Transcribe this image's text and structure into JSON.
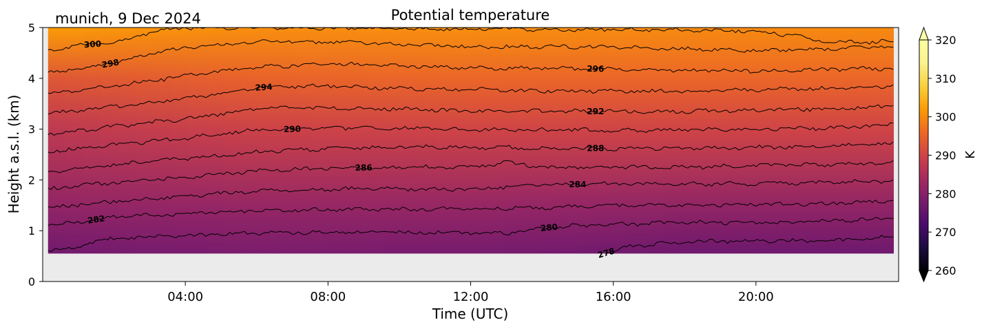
{
  "chart_data": {
    "type": "heatmap",
    "title": "Potential temperature",
    "location_label": "munich, 9 Dec 2024",
    "xlabel": "Time (UTC)",
    "ylabel": "Height a.s.l. (km)",
    "x_range_hours": [
      0,
      24
    ],
    "ylim": [
      0,
      5
    ],
    "x_ticks": [
      {
        "hour": 4,
        "label": "04:00"
      },
      {
        "hour": 8,
        "label": "08:00"
      },
      {
        "hour": 12,
        "label": "12:00"
      },
      {
        "hour": 16,
        "label": "16:00"
      },
      {
        "hour": 20,
        "label": "20:00"
      }
    ],
    "y_ticks": [
      {
        "value": 0,
        "label": "0"
      },
      {
        "value": 1,
        "label": "1"
      },
      {
        "value": 2,
        "label": "2"
      },
      {
        "value": 3,
        "label": "3"
      },
      {
        "value": 4,
        "label": "4"
      },
      {
        "value": 5,
        "label": "5"
      }
    ],
    "data_extent": {
      "time_hours": [
        0.15,
        23.85
      ],
      "height_km": [
        0.55,
        5.0
      ]
    },
    "colorbar": {
      "label": "K",
      "range": [
        260,
        320
      ],
      "colormap": "inferno",
      "extend": "both",
      "ticks": [
        {
          "value": 260,
          "label": "260"
        },
        {
          "value": 270,
          "label": "270"
        },
        {
          "value": 280,
          "label": "280"
        },
        {
          "value": 290,
          "label": "290"
        },
        {
          "value": 300,
          "label": "300"
        },
        {
          "value": 310,
          "label": "310"
        },
        {
          "value": 320,
          "label": "320"
        }
      ]
    },
    "field_samples": [
      {
        "time_hours": 0.2,
        "profile": [
          {
            "height_km": 0.6,
            "theta_k": 277.4
          },
          {
            "height_km": 1.5,
            "theta_k": 281.5
          },
          {
            "height_km": 3.0,
            "theta_k": 287.5
          },
          {
            "height_km": 4.0,
            "theta_k": 293.0
          },
          {
            "height_km": 5.0,
            "theta_k": 302.0
          }
        ]
      },
      {
        "time_hours": 6.0,
        "profile": [
          {
            "height_km": 0.6,
            "theta_k": 278.5
          },
          {
            "height_km": 1.5,
            "theta_k": 282.0
          },
          {
            "height_km": 3.0,
            "theta_k": 289.5
          },
          {
            "height_km": 4.0,
            "theta_k": 295.0
          },
          {
            "height_km": 5.0,
            "theta_k": 300.5
          }
        ]
      },
      {
        "time_hours": 12.0,
        "profile": [
          {
            "height_km": 0.6,
            "theta_k": 278.0
          },
          {
            "height_km": 1.5,
            "theta_k": 282.0
          },
          {
            "height_km": 3.0,
            "theta_k": 290.0
          },
          {
            "height_km": 4.0,
            "theta_k": 295.5
          },
          {
            "height_km": 5.0,
            "theta_k": 300.5
          }
        ]
      },
      {
        "time_hours": 18.0,
        "profile": [
          {
            "height_km": 0.6,
            "theta_k": 277.0
          },
          {
            "height_km": 1.5,
            "theta_k": 281.5
          },
          {
            "height_km": 3.0,
            "theta_k": 290.0
          },
          {
            "height_km": 4.0,
            "theta_k": 295.5
          },
          {
            "height_km": 5.0,
            "theta_k": 300.0
          }
        ]
      },
      {
        "time_hours": 23.8,
        "profile": [
          {
            "height_km": 0.6,
            "theta_k": 277.0
          },
          {
            "height_km": 1.5,
            "theta_k": 281.5
          },
          {
            "height_km": 3.0,
            "theta_k": 290.0
          },
          {
            "height_km": 4.0,
            "theta_k": 295.5
          },
          {
            "height_km": 5.0,
            "theta_k": 300.0
          }
        ]
      }
    ],
    "contours": [
      {
        "level": 278,
        "label": "278",
        "label_time_hours": 15.8,
        "points": [
          [
            15.8,
            0.56
          ],
          [
            16.5,
            0.7
          ],
          [
            18,
            0.78
          ],
          [
            20,
            0.8
          ],
          [
            22,
            0.8
          ],
          [
            23.85,
            0.88
          ]
        ]
      },
      {
        "level": 280,
        "label": "280",
        "label_time_hours": 14.2,
        "points": [
          [
            0.15,
            0.62
          ],
          [
            1,
            0.66
          ],
          [
            1.5,
            0.8
          ],
          [
            2.5,
            0.88
          ],
          [
            4,
            0.9
          ],
          [
            6,
            0.96
          ],
          [
            8,
            0.97
          ],
          [
            10,
            0.97
          ],
          [
            12,
            0.96
          ],
          [
            13,
            0.95
          ],
          [
            14,
            1.05
          ],
          [
            15,
            1.1
          ],
          [
            18,
            1.16
          ],
          [
            21,
            1.16
          ],
          [
            23.85,
            1.25
          ]
        ]
      },
      {
        "level": 282,
        "label": "282",
        "label_time_hours": 1.5,
        "points": [
          [
            0.15,
            1.1
          ],
          [
            1,
            1.17
          ],
          [
            2,
            1.27
          ],
          [
            4,
            1.33
          ],
          [
            6,
            1.4
          ],
          [
            8,
            1.42
          ],
          [
            10,
            1.42
          ],
          [
            12,
            1.43
          ],
          [
            14,
            1.46
          ],
          [
            16,
            1.5
          ],
          [
            18,
            1.5
          ],
          [
            20,
            1.52
          ],
          [
            22,
            1.53
          ],
          [
            23.85,
            1.6
          ]
        ]
      },
      {
        "level": 284,
        "label": "284",
        "label_time_hours": 15.0,
        "points": [
          [
            0.15,
            1.45
          ],
          [
            2,
            1.58
          ],
          [
            4,
            1.68
          ],
          [
            6,
            1.78
          ],
          [
            8,
            1.82
          ],
          [
            10,
            1.82
          ],
          [
            12,
            1.82
          ],
          [
            14,
            1.9
          ],
          [
            16,
            1.92
          ],
          [
            18,
            1.92
          ],
          [
            20,
            1.93
          ],
          [
            22,
            1.95
          ],
          [
            23.85,
            1.98
          ]
        ]
      },
      {
        "level": 286,
        "label": "286",
        "label_time_hours": 9.0,
        "points": [
          [
            0.15,
            1.82
          ],
          [
            2,
            1.95
          ],
          [
            4,
            2.05
          ],
          [
            6,
            2.18
          ],
          [
            8,
            2.23
          ],
          [
            10,
            2.25
          ],
          [
            12,
            2.25
          ],
          [
            13,
            2.35
          ],
          [
            14,
            2.25
          ],
          [
            16,
            2.25
          ],
          [
            18,
            2.25
          ],
          [
            20,
            2.28
          ],
          [
            22,
            2.3
          ],
          [
            23.85,
            2.35
          ]
        ]
      },
      {
        "level": 288,
        "label": "288",
        "label_time_hours": 15.5,
        "points": [
          [
            0.15,
            2.15
          ],
          [
            2,
            2.3
          ],
          [
            4,
            2.42
          ],
          [
            6,
            2.55
          ],
          [
            8,
            2.62
          ],
          [
            10,
            2.65
          ],
          [
            12,
            2.65
          ],
          [
            14,
            2.62
          ],
          [
            16,
            2.62
          ],
          [
            18,
            2.62
          ],
          [
            20,
            2.64
          ],
          [
            22,
            2.66
          ],
          [
            23.85,
            2.72
          ]
        ]
      },
      {
        "level": 290,
        "label": "290",
        "label_time_hours": 7.0,
        "points": [
          [
            0.15,
            2.55
          ],
          [
            2,
            2.7
          ],
          [
            4,
            2.82
          ],
          [
            6,
            2.98
          ],
          [
            8,
            3.02
          ],
          [
            10,
            3.02
          ],
          [
            12,
            3.0
          ],
          [
            14,
            2.98
          ],
          [
            16,
            2.98
          ],
          [
            18,
            2.98
          ],
          [
            20,
            3.0
          ],
          [
            22,
            3.02
          ],
          [
            23.85,
            3.1
          ]
        ]
      },
      {
        "level": 292,
        "label": "292",
        "label_time_hours": 15.5,
        "points": [
          [
            0.15,
            2.9
          ],
          [
            2,
            3.05
          ],
          [
            4,
            3.2
          ],
          [
            6,
            3.4
          ],
          [
            8,
            3.42
          ],
          [
            10,
            3.4
          ],
          [
            12,
            3.35
          ],
          [
            14,
            3.35
          ],
          [
            16,
            3.35
          ],
          [
            18,
            3.35
          ],
          [
            20,
            3.37
          ],
          [
            22,
            3.4
          ],
          [
            23.85,
            3.45
          ]
        ]
      },
      {
        "level": 294,
        "label": "294",
        "label_time_hours": 6.2,
        "points": [
          [
            0.15,
            3.3
          ],
          [
            2,
            3.45
          ],
          [
            4,
            3.6
          ],
          [
            6,
            3.82
          ],
          [
            8,
            3.85
          ],
          [
            10,
            3.8
          ],
          [
            12,
            3.78
          ],
          [
            14,
            3.75
          ],
          [
            16,
            3.75
          ],
          [
            18,
            3.75
          ],
          [
            20,
            3.77
          ],
          [
            22,
            3.8
          ],
          [
            23.85,
            3.85
          ]
        ]
      },
      {
        "level": 296,
        "label": "296",
        "label_time_hours": 15.5,
        "points": [
          [
            0.15,
            3.7
          ],
          [
            2,
            3.85
          ],
          [
            4,
            4.05
          ],
          [
            6,
            4.22
          ],
          [
            8,
            4.28
          ],
          [
            10,
            4.25
          ],
          [
            12,
            4.2
          ],
          [
            14,
            4.2
          ],
          [
            16,
            4.18
          ],
          [
            18,
            4.15
          ],
          [
            20,
            4.15
          ],
          [
            22,
            4.18
          ],
          [
            23.85,
            4.2
          ]
        ]
      },
      {
        "level": 298,
        "label": "298",
        "label_time_hours": 1.9,
        "points": [
          [
            0.15,
            4.1
          ],
          [
            1,
            4.2
          ],
          [
            2,
            4.3
          ],
          [
            3,
            4.48
          ],
          [
            4,
            4.6
          ],
          [
            6,
            4.72
          ],
          [
            8,
            4.72
          ],
          [
            10,
            4.68
          ],
          [
            12,
            4.62
          ],
          [
            14,
            4.62
          ],
          [
            16,
            4.62
          ],
          [
            18,
            4.58
          ],
          [
            20,
            4.55
          ],
          [
            22,
            4.58
          ],
          [
            23.85,
            4.62
          ]
        ]
      },
      {
        "level": 300,
        "label": "300",
        "label_time_hours": 1.4,
        "points": [
          [
            0.15,
            4.55
          ],
          [
            1,
            4.65
          ],
          [
            2,
            4.7
          ],
          [
            3,
            4.9
          ],
          [
            4,
            5.0
          ],
          [
            6,
            5.0
          ],
          [
            8,
            4.99
          ],
          [
            10,
            4.98
          ],
          [
            12,
            4.97
          ],
          [
            14,
            4.96
          ],
          [
            16,
            4.96
          ],
          [
            18,
            4.95
          ],
          [
            20,
            4.93
          ],
          [
            21,
            4.85
          ],
          [
            22,
            4.7
          ],
          [
            23.85,
            4.73
          ]
        ]
      }
    ]
  }
}
